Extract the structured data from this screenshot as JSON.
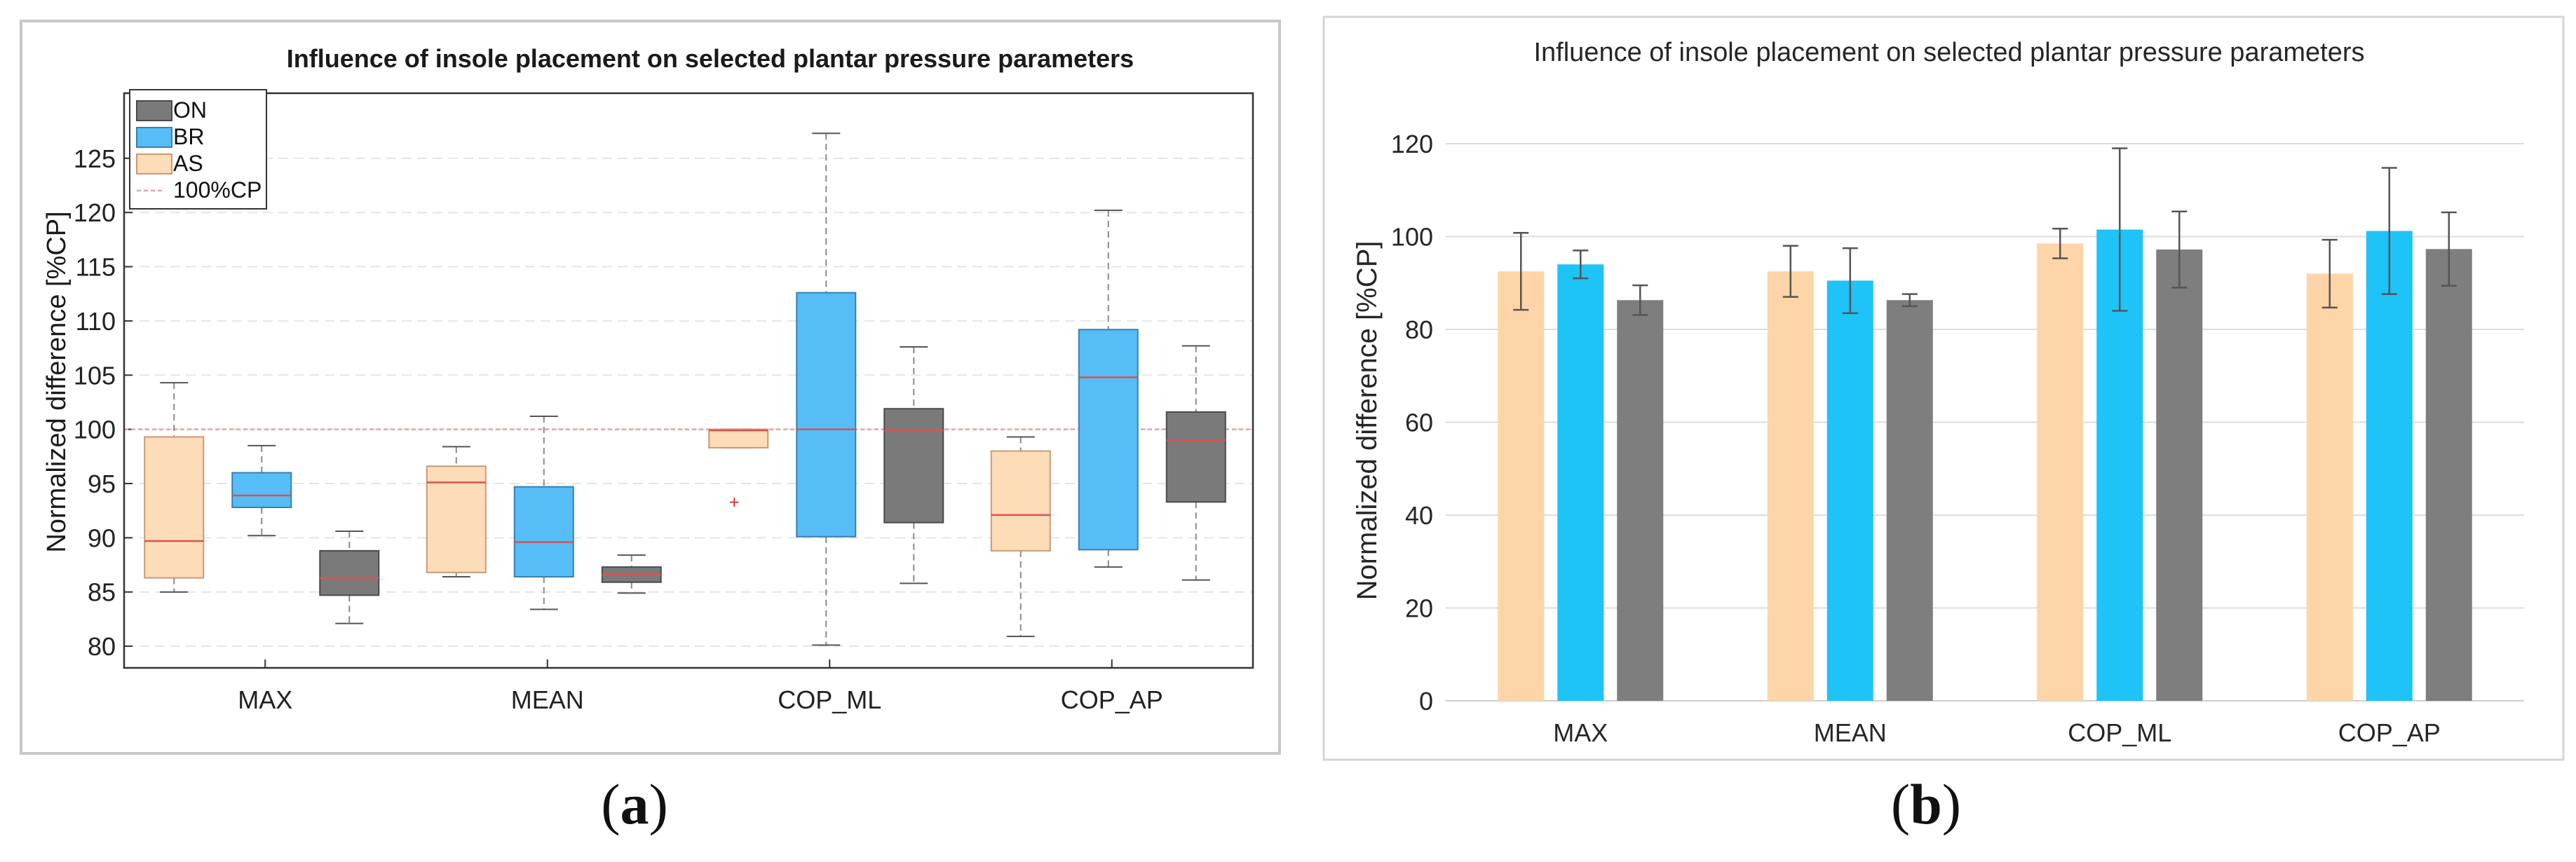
{
  "panels": [
    {
      "letter_prefix": "(",
      "letter": "a",
      "letter_suffix": ")"
    },
    {
      "letter_prefix": "(",
      "letter": "b",
      "letter_suffix": ")"
    }
  ],
  "chart_data": [
    {
      "type": "box",
      "title": "Influence of insole placement on selected plantar pressure parameters",
      "ylabel": "Normalized difference [%CP]",
      "xlabel": "",
      "categories": [
        "MAX",
        "MEAN",
        "COP_ML",
        "COP_AP"
      ],
      "ylim": [
        78,
        131
      ],
      "yticks": [
        80,
        85,
        90,
        95,
        100,
        105,
        110,
        115,
        120,
        125
      ],
      "grid": true,
      "legend": "top-left",
      "reference_line": {
        "value": 100,
        "label": "100%CP",
        "color": "#e8a0a8"
      },
      "series": [
        {
          "name": "AS",
          "color": "#fddcb8",
          "edge": "#c89a78",
          "boxes": [
            {
              "whisker_low": 85.0,
              "q1": 86.3,
              "median": 89.7,
              "q3": 99.3,
              "whisker_high": 104.3
            },
            {
              "whisker_low": 86.4,
              "q1": 86.8,
              "median": 95.1,
              "q3": 96.6,
              "whisker_high": 98.4
            },
            {
              "whisker_low": 98.3,
              "q1": 98.3,
              "median": 99.9,
              "q3": 100.0,
              "whisker_high": 100.0,
              "outliers": [
                93.3
              ]
            },
            {
              "whisker_low": 80.9,
              "q1": 88.8,
              "median": 92.1,
              "q3": 98.0,
              "whisker_high": 99.3
            }
          ]
        },
        {
          "name": "BR",
          "color": "#56bdf7",
          "edge": "#3a7fb0",
          "boxes": [
            {
              "whisker_low": 90.2,
              "q1": 92.8,
              "median": 93.9,
              "q3": 96.0,
              "whisker_high": 98.5
            },
            {
              "whisker_low": 83.4,
              "q1": 86.4,
              "median": 89.6,
              "q3": 94.7,
              "whisker_high": 101.2
            },
            {
              "whisker_low": 80.1,
              "q1": 90.1,
              "median": 100.0,
              "q3": 112.6,
              "whisker_high": 127.3
            },
            {
              "whisker_low": 87.3,
              "q1": 88.9,
              "median": 104.8,
              "q3": 109.2,
              "whisker_high": 120.2
            }
          ]
        },
        {
          "name": "ON",
          "color": "#7a7a7a",
          "edge": "#4a4a4a",
          "boxes": [
            {
              "whisker_low": 82.1,
              "q1": 84.7,
              "median": 86.3,
              "q3": 88.8,
              "whisker_high": 90.6
            },
            {
              "whisker_low": 84.9,
              "q1": 85.9,
              "median": 86.6,
              "q3": 87.3,
              "whisker_high": 88.4
            },
            {
              "whisker_low": 85.8,
              "q1": 91.4,
              "median": 99.9,
              "q3": 101.9,
              "whisker_high": 107.6
            },
            {
              "whisker_low": 86.1,
              "q1": 93.3,
              "median": 99.0,
              "q3": 101.6,
              "whisker_high": 107.7
            }
          ]
        }
      ],
      "legend_order": [
        "ON",
        "BR",
        "AS",
        "100%CP"
      ]
    },
    {
      "type": "bar",
      "title": "Influence of insole placement on selected plantar pressure parameters",
      "ylabel": "Normalized difference [%CP]",
      "xlabel": "",
      "categories": [
        "MAX",
        "MEAN",
        "COP_ML",
        "COP_AP"
      ],
      "ylim": [
        0,
        120
      ],
      "yticks": [
        0,
        20,
        40,
        60,
        80,
        100,
        120
      ],
      "grid": true,
      "legend": "none",
      "series": [
        {
          "name": "AS",
          "color": "#fdd5a8",
          "values": [
            92.5,
            92.5,
            98.5,
            92.0
          ],
          "errors": [
            8.3,
            5.5,
            3.2,
            7.3
          ]
        },
        {
          "name": "BR",
          "color": "#1ec3f8",
          "values": [
            94.0,
            90.5,
            101.5,
            101.2
          ],
          "errors": [
            3.0,
            7.0,
            17.5,
            13.6
          ]
        },
        {
          "name": "ON",
          "color": "#7e7e7e",
          "values": [
            86.3,
            86.3,
            97.2,
            97.3
          ],
          "errors": [
            3.2,
            1.3,
            8.2,
            7.9
          ]
        }
      ]
    }
  ]
}
